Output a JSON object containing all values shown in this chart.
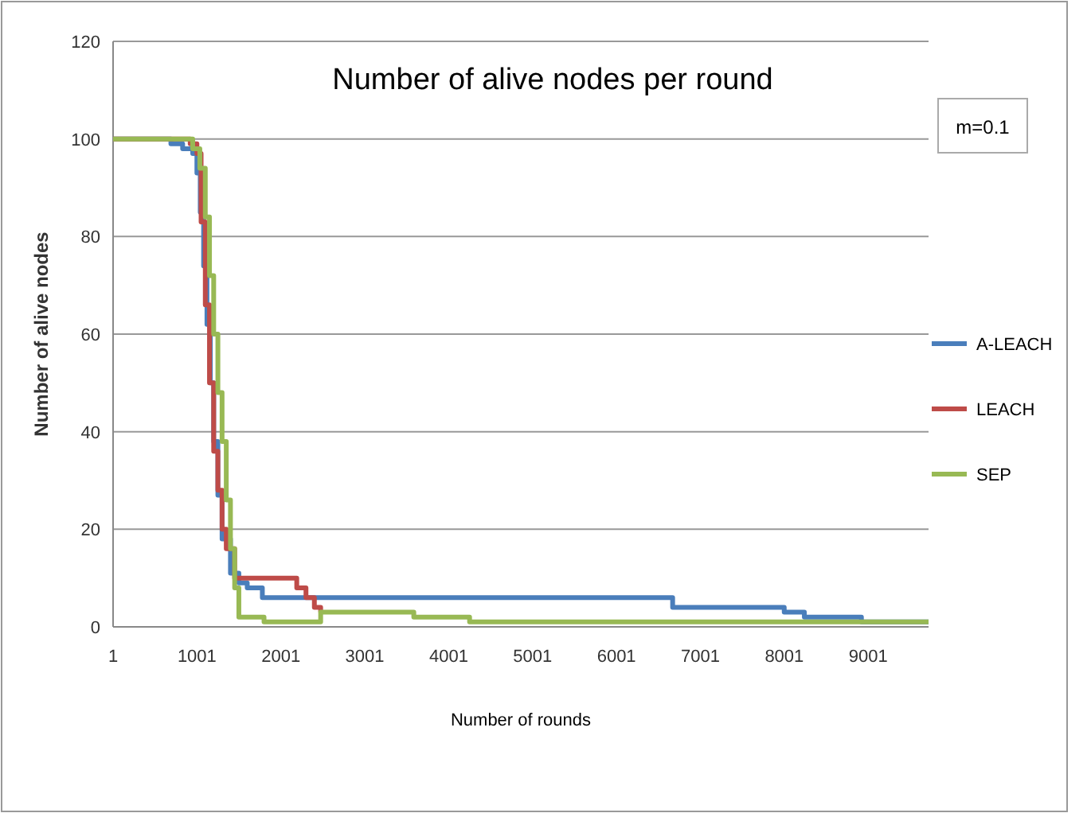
{
  "chart_data": {
    "type": "step",
    "title": "Number of alive nodes per round",
    "xlabel": "Number of rounds",
    "ylabel": "Number of alive nodes",
    "annotations": [
      "m=0.1"
    ],
    "xlim": [
      1,
      9720
    ],
    "xticks": [
      1,
      1001,
      2001,
      3001,
      4001,
      5001,
      6001,
      7001,
      8001,
      9001
    ],
    "ylim": [
      0,
      120
    ],
    "yticks": [
      0,
      20,
      40,
      60,
      80,
      100,
      120
    ],
    "grid": "y",
    "legend": "right",
    "marker": "none",
    "line_style": "solid",
    "series": [
      {
        "name": "A-LEACH",
        "color": "#4a7ebb",
        "x": [
          1,
          690,
          830,
          950,
          1000,
          1040,
          1080,
          1120,
          1160,
          1200,
          1250,
          1300,
          1400,
          1500,
          1600,
          1780,
          6550,
          6670,
          8000,
          8240,
          8920,
          9720
        ],
        "values": [
          100,
          99,
          98,
          97,
          93,
          85,
          74,
          62,
          50,
          38,
          27,
          18,
          11,
          9,
          8,
          6,
          6,
          4,
          3,
          2,
          1,
          1
        ]
      },
      {
        "name": "LEACH",
        "color": "#be4b48",
        "x": [
          1,
          920,
          1000,
          1050,
          1100,
          1150,
          1200,
          1250,
          1300,
          1350,
          1450,
          1930,
          2190,
          2300,
          2400,
          2475
        ],
        "values": [
          100,
          99,
          97,
          83,
          66,
          50,
          36,
          28,
          20,
          16,
          10,
          10,
          8,
          6,
          4,
          3
        ]
      },
      {
        "name": "SEP",
        "color": "#98b954",
        "x": [
          1,
          830,
          950,
          1035,
          1100,
          1150,
          1200,
          1250,
          1300,
          1350,
          1400,
          1450,
          1500,
          1800,
          2475,
          3585,
          4250,
          9720
        ],
        "values": [
          100,
          100,
          98,
          94,
          84,
          72,
          60,
          48,
          38,
          26,
          16,
          8,
          2,
          1,
          3,
          2,
          1,
          1
        ]
      }
    ]
  }
}
